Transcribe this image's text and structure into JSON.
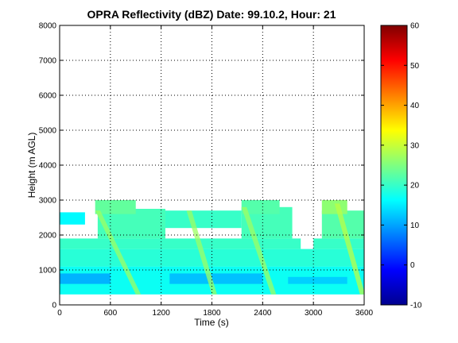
{
  "chart_data": {
    "type": "heatmap",
    "title": "OPRA Reflectivity (dBZ)  Date: 99.10.2, Hour: 21",
    "xlabel": "Time (s)",
    "ylabel": "Height (m AGL)",
    "xlim": [
      0,
      3600
    ],
    "ylim": [
      0,
      8000
    ],
    "xticks": [
      "0",
      "600",
      "1200",
      "1800",
      "2400",
      "3000",
      "3600"
    ],
    "yticks": [
      "0",
      "1000",
      "2000",
      "3000",
      "4000",
      "5000",
      "6000",
      "7000",
      "8000"
    ],
    "grid": true,
    "colorbar": {
      "range": [
        -10,
        60
      ],
      "ticks": [
        "-10",
        "0",
        "10",
        "20",
        "30",
        "40",
        "50",
        "60"
      ],
      "colormap": "jet"
    },
    "echo_layers": [
      {
        "t0": 0,
        "t1": 3600,
        "h0": 300,
        "h1": 1100,
        "dbz": 17
      },
      {
        "t0": 0,
        "t1": 3600,
        "h0": 1100,
        "h1": 1600,
        "dbz": 19
      },
      {
        "t0": 0,
        "t1": 2850,
        "h0": 1600,
        "h1": 1900,
        "dbz": 20
      },
      {
        "t0": 3000,
        "t1": 3600,
        "h0": 1600,
        "h1": 1900,
        "dbz": 20
      },
      {
        "t0": 0,
        "t1": 600,
        "h0": 600,
        "h1": 900,
        "dbz": 11
      },
      {
        "t0": 1300,
        "t1": 2400,
        "h0": 600,
        "h1": 900,
        "dbz": 12
      },
      {
        "t0": 2700,
        "t1": 3400,
        "h0": 600,
        "h1": 800,
        "dbz": 13
      },
      {
        "t0": 450,
        "t1": 1250,
        "h0": 1900,
        "h1": 2750,
        "dbz": 21
      },
      {
        "t0": 1250,
        "t1": 2150,
        "h0": 2200,
        "h1": 2700,
        "dbz": 20
      },
      {
        "t0": 2150,
        "t1": 2750,
        "h0": 1900,
        "h1": 2800,
        "dbz": 21
      },
      {
        "t0": 3100,
        "t1": 3600,
        "h0": 1900,
        "h1": 2700,
        "dbz": 22
      },
      {
        "t0": 420,
        "t1": 900,
        "h0": 2600,
        "h1": 3000,
        "dbz": 23
      },
      {
        "t0": 2150,
        "t1": 2600,
        "h0": 2600,
        "h1": 3000,
        "dbz": 22
      },
      {
        "t0": 3100,
        "t1": 3400,
        "h0": 2600,
        "h1": 3000,
        "dbz": 26
      },
      {
        "t0": 0,
        "t1": 300,
        "h0": 2300,
        "h1": 2650,
        "dbz": 16
      }
    ],
    "echo_streaks": [
      {
        "t_top": 420,
        "t_bottom": 900,
        "h_top": 2700,
        "h_bottom": 300,
        "dbz": 27
      },
      {
        "t_top": 1500,
        "t_bottom": 1800,
        "h_top": 2700,
        "h_bottom": 300,
        "dbz": 27
      },
      {
        "t_top": 2150,
        "t_bottom": 2500,
        "h_top": 2800,
        "h_bottom": 300,
        "dbz": 27
      },
      {
        "t_top": 3250,
        "t_bottom": 3550,
        "h_top": 2900,
        "h_bottom": 300,
        "dbz": 29
      }
    ]
  }
}
